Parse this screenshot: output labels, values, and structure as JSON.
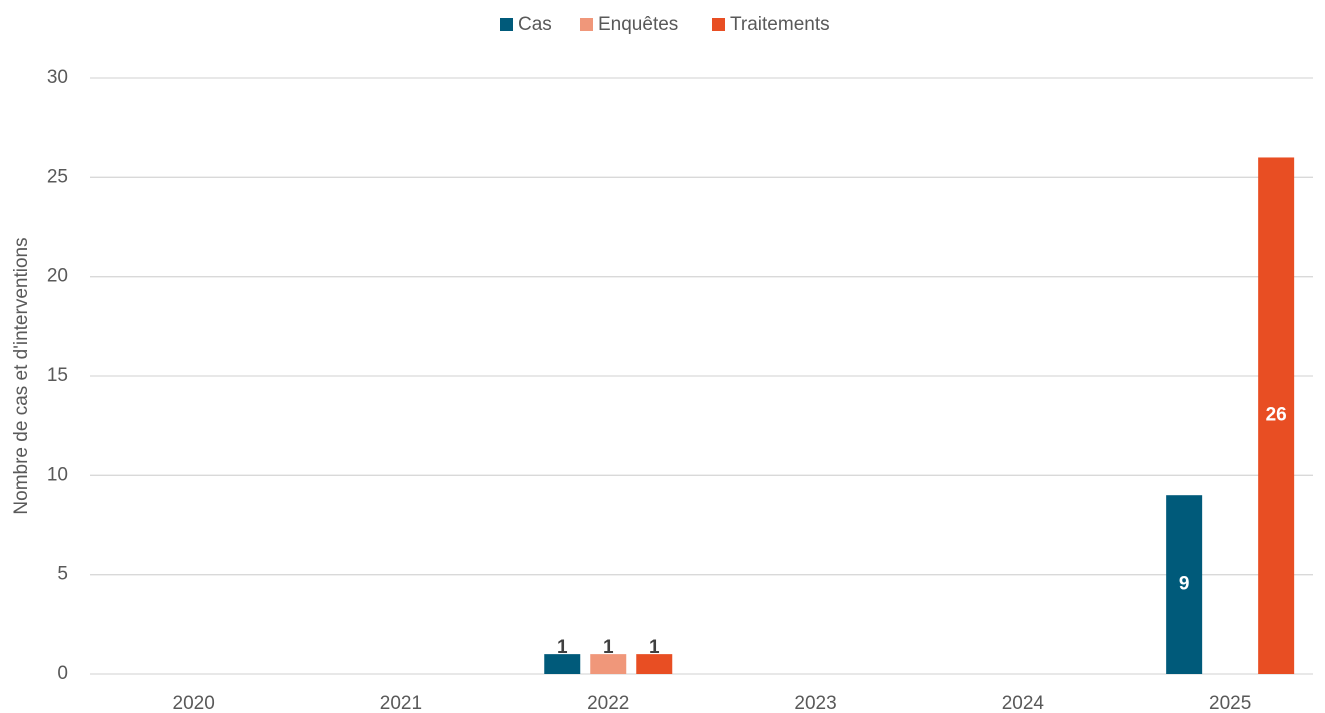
{
  "chart_data": {
    "type": "bar",
    "y_label": "Nombre de cas et d'interventions",
    "categories": [
      "2020",
      "2021",
      "2022",
      "2023",
      "2024",
      "2025"
    ],
    "series": [
      {
        "name": "Cas",
        "color": "#005a7a",
        "values": [
          null,
          null,
          1,
          null,
          null,
          9
        ]
      },
      {
        "name": "Enquêtes",
        "color": "#f0977a",
        "values": [
          null,
          null,
          1,
          null,
          null,
          null
        ]
      },
      {
        "name": "Traitements",
        "color": "#e84e23",
        "values": [
          null,
          null,
          1,
          null,
          null,
          26
        ]
      }
    ],
    "ylim": [
      0,
      30
    ],
    "yticks": [
      0,
      5,
      10,
      15,
      20,
      25,
      30
    ],
    "grid": true,
    "legend": "top"
  }
}
